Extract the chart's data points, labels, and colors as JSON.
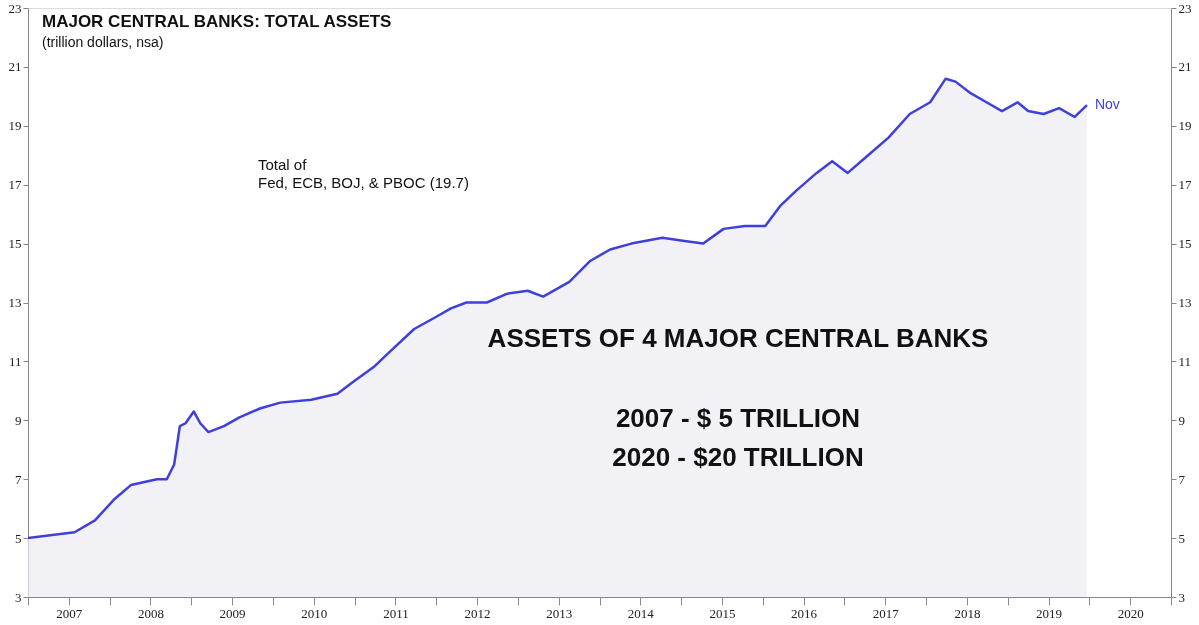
{
  "chart_data": {
    "type": "area",
    "title": "MAJOR CENTRAL BANKS: TOTAL ASSETS",
    "subtitle": "(trillion dollars, nsa)",
    "annotations": [
      "Total of\nFed, ECB, BOJ, & PBOC (19.7)",
      {
        "text": "Nov",
        "x": 2019.97,
        "y": 19.7
      },
      "ASSETS OF 4 MAJOR CENTRAL BANKS",
      "2007 - $ 5 TRILLION",
      "2020 - $20 TRILLION"
    ],
    "x": [
      2007.0,
      2007.57,
      2007.82,
      2008.05,
      2008.26,
      2008.58,
      2008.7,
      2008.79,
      2008.86,
      2008.93,
      2009.03,
      2009.11,
      2009.21,
      2009.4,
      2009.59,
      2009.84,
      2010.09,
      2010.47,
      2010.79,
      2010.98,
      2011.23,
      2011.42,
      2011.73,
      2011.99,
      2012.18,
      2012.37,
      2012.62,
      2012.87,
      2013.12,
      2013.31,
      2013.63,
      2013.88,
      2014.13,
      2014.39,
      2014.77,
      2015.02,
      2015.27,
      2015.52,
      2015.78,
      2016.03,
      2016.22,
      2016.41,
      2016.66,
      2016.85,
      2017.04,
      2017.29,
      2017.54,
      2017.8,
      2018.05,
      2018.24,
      2018.36,
      2018.55,
      2018.74,
      2018.93,
      2019.12,
      2019.25,
      2019.44,
      2019.63,
      2019.82,
      2019.97
    ],
    "series": [
      {
        "color": "#3f3fdc",
        "values": [
          5.0,
          5.2,
          5.6,
          6.3,
          6.8,
          7.0,
          7.0,
          7.5,
          8.8,
          8.9,
          9.3,
          8.9,
          8.6,
          8.8,
          9.1,
          9.4,
          9.6,
          9.7,
          9.9,
          10.3,
          10.8,
          11.3,
          12.1,
          12.5,
          12.8,
          13.0,
          13.0,
          13.3,
          13.4,
          13.2,
          13.7,
          14.4,
          14.8,
          15.0,
          15.2,
          15.1,
          15.0,
          15.5,
          15.6,
          15.6,
          16.3,
          16.8,
          17.4,
          17.8,
          17.4,
          18.0,
          18.6,
          19.4,
          19.8,
          20.6,
          20.5,
          20.1,
          19.8,
          19.5,
          19.8,
          19.5,
          19.4,
          19.6,
          19.3,
          19.7
        ]
      }
    ],
    "xlim": [
      2007,
      2021
    ],
    "xticks": [
      {
        "value": 2007,
        "label": null
      },
      {
        "value": 2007.5,
        "label": "2007"
      },
      {
        "value": 2008,
        "label": null
      },
      {
        "value": 2008.5,
        "label": "2008"
      },
      {
        "value": 2009,
        "label": null
      },
      {
        "value": 2009.5,
        "label": "2009"
      },
      {
        "value": 2010,
        "label": null
      },
      {
        "value": 2010.5,
        "label": "2010"
      },
      {
        "value": 2011,
        "label": null
      },
      {
        "value": 2011.5,
        "label": "2011"
      },
      {
        "value": 2012,
        "label": null
      },
      {
        "value": 2012.5,
        "label": "2012"
      },
      {
        "value": 2013,
        "label": null
      },
      {
        "value": 2013.5,
        "label": "2013"
      },
      {
        "value": 2014,
        "label": null
      },
      {
        "value": 2014.5,
        "label": "2014"
      },
      {
        "value": 2015,
        "label": null
      },
      {
        "value": 2015.5,
        "label": "2015"
      },
      {
        "value": 2016,
        "label": null
      },
      {
        "value": 2016.5,
        "label": "2016"
      },
      {
        "value": 2017,
        "label": null
      },
      {
        "value": 2017.5,
        "label": "2017"
      },
      {
        "value": 2018,
        "label": null
      },
      {
        "value": 2018.5,
        "label": "2018"
      },
      {
        "value": 2019,
        "label": null
      },
      {
        "value": 2019.5,
        "label": "2019"
      },
      {
        "value": 2020,
        "label": null
      },
      {
        "value": 2020.5,
        "label": "2020"
      },
      {
        "value": 2021,
        "label": null
      }
    ],
    "ylim": [
      3,
      23
    ],
    "yticks": [
      3,
      5,
      7,
      9,
      11,
      13,
      15,
      17,
      19,
      21,
      23
    ],
    "y2lim": [
      3,
      23
    ],
    "y2ticks": [
      3,
      5,
      7,
      9,
      11,
      13,
      15,
      17,
      19,
      21,
      23
    ],
    "grid": false,
    "legend": false
  }
}
